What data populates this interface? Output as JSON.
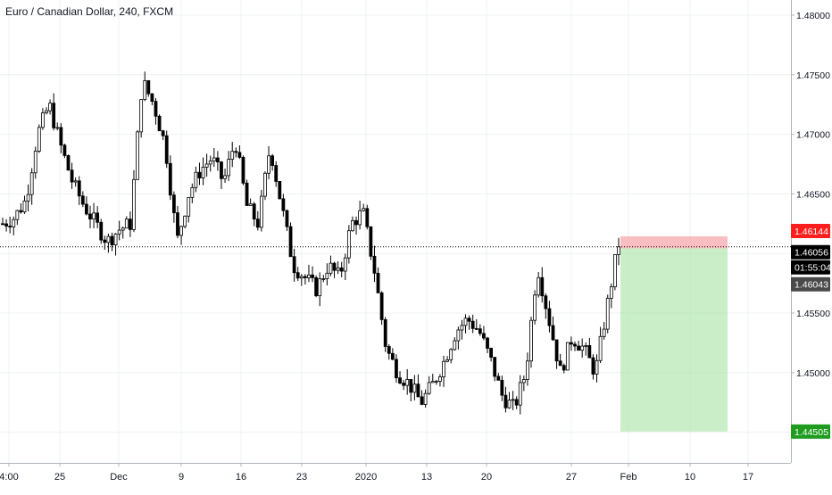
{
  "header": {
    "symbol_title": "Euro / Canadian Dollar, 240, FXCM"
  },
  "colors": {
    "background": "#ffffff",
    "grid": "#edf0f3",
    "axis_text": "#131722",
    "candle": "#000000",
    "stop_zone": "#f5a3a8",
    "target_zone": "#9fe29a",
    "stop_label_bg": "#ff1e1e",
    "current_label_bg": "#000000",
    "countdown_label_bg": "#000000",
    "entry_label_bg": "#4a4a4a",
    "target_label_bg": "#1f9c1f"
  },
  "price_axis": {
    "ticks": [
      "1.48000",
      "1.47500",
      "1.47000",
      "1.46500",
      "1.45500",
      "1.45000"
    ],
    "tick_values": [
      1.48,
      1.475,
      1.47,
      1.465,
      1.455,
      1.45
    ],
    "labels": {
      "stop": "1.46144",
      "current": "1.46056",
      "countdown": "01:55:04",
      "entry": "1.46043",
      "target": "1.44505"
    }
  },
  "time_axis": {
    "labels": [
      "4:00",
      "25",
      "Dec",
      "9",
      "16",
      "23",
      "2020",
      "13",
      "20",
      "27",
      "Feb",
      "10",
      "17"
    ]
  },
  "position": {
    "type": "short",
    "entry": 1.46043,
    "stop": 1.46144,
    "target": 1.44505
  },
  "chart_data": {
    "type": "candlestick",
    "title": "Euro / Canadian Dollar, 240, FXCM",
    "xlabel": "",
    "ylabel": "",
    "ylim": [
      1.4425,
      1.481
    ],
    "x_labels": [
      "4:00",
      "25",
      "Dec",
      "9",
      "16",
      "23",
      "2020",
      "13",
      "20",
      "27",
      "Feb",
      "10",
      "17"
    ],
    "approx_closes": [
      1.4625,
      1.463,
      1.4645,
      1.47,
      1.4725,
      1.469,
      1.466,
      1.464,
      1.4625,
      1.461,
      1.462,
      1.4625,
      1.4745,
      1.4725,
      1.469,
      1.461,
      1.465,
      1.467,
      1.468,
      1.466,
      1.4695,
      1.464,
      1.4625,
      1.469,
      1.464,
      1.459,
      1.458,
      1.457,
      1.459,
      1.458,
      1.4625,
      1.4635,
      1.4585,
      1.452,
      1.45,
      1.449,
      1.4475,
      1.449,
      1.451,
      1.4535,
      1.4545,
      1.4535,
      1.451,
      1.448,
      1.447,
      1.45,
      1.459,
      1.4545,
      1.45,
      1.453,
      1.452,
      1.45,
      1.4555,
      1.461
    ],
    "last": 1.46056
  }
}
